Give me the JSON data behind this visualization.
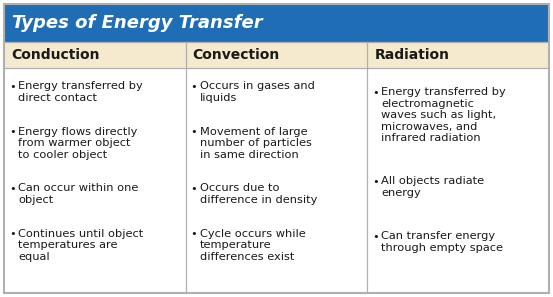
{
  "title": "Types of Energy Transfer",
  "title_bg": "#1f6db5",
  "title_color": "#ffffff",
  "header_bg": "#f5e9ce",
  "header_color": "#1a1a1a",
  "body_bg": "#ffffff",
  "border_color": "#b0b0b0",
  "text_color": "#1a1a1a",
  "headers": [
    "Conduction",
    "Convection",
    "Radiation"
  ],
  "col_bullets": [
    [
      "Energy transferred by\ndirect contact",
      "Energy flows directly\nfrom warmer object\nto cooler object",
      "Can occur within one\nobject",
      "Continues until object\ntemperatures are\nequal"
    ],
    [
      "Occurs in gases and\nliquids",
      "Movement of large\nnumber of particles\nin same direction",
      "Occurs due to\ndifference in density",
      "Cycle occurs while\ntemperature\ndifferences exist"
    ],
    [
      "Energy transferred by\nelectromagnetic\nwaves such as light,\nmicrowaves, and\ninfrared radiation",
      "All objects radiate\nenergy",
      "Can transfer energy\nthrough empty space"
    ]
  ],
  "figsize": [
    5.53,
    2.97
  ],
  "dpi": 100
}
